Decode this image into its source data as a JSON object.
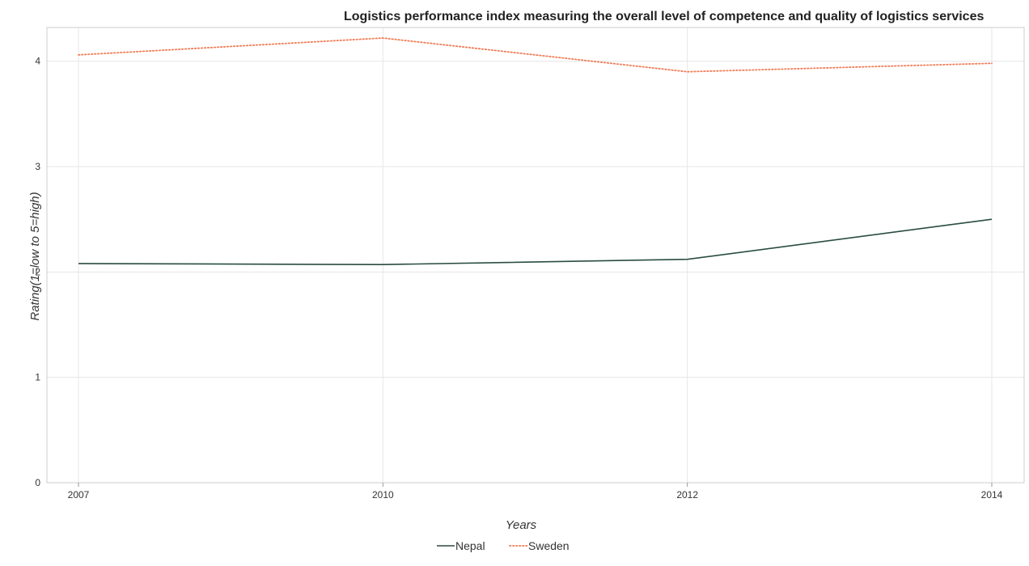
{
  "chart_data": {
    "type": "line",
    "title": "Logistics performance index measuring the overall level of competence and quality of logistics services",
    "xlabel": "Years",
    "ylabel": "Rating(1=low to 5=high)",
    "categories": [
      "2007",
      "2010",
      "2012",
      "2014"
    ],
    "ylim": [
      0,
      4.32
    ],
    "yticks": [
      "0",
      "1",
      "2",
      "3",
      "4"
    ],
    "grid": true,
    "legend_position": "bottom-center",
    "series": [
      {
        "name": "Nepal",
        "values": [
          2.08,
          2.07,
          2.12,
          2.5
        ],
        "color": "#2a4d3f",
        "dash": "solid"
      },
      {
        "name": "Sweden",
        "values": [
          4.06,
          4.22,
          3.9,
          3.98
        ],
        "color": "#f07c56",
        "dash": "dotted"
      }
    ]
  }
}
